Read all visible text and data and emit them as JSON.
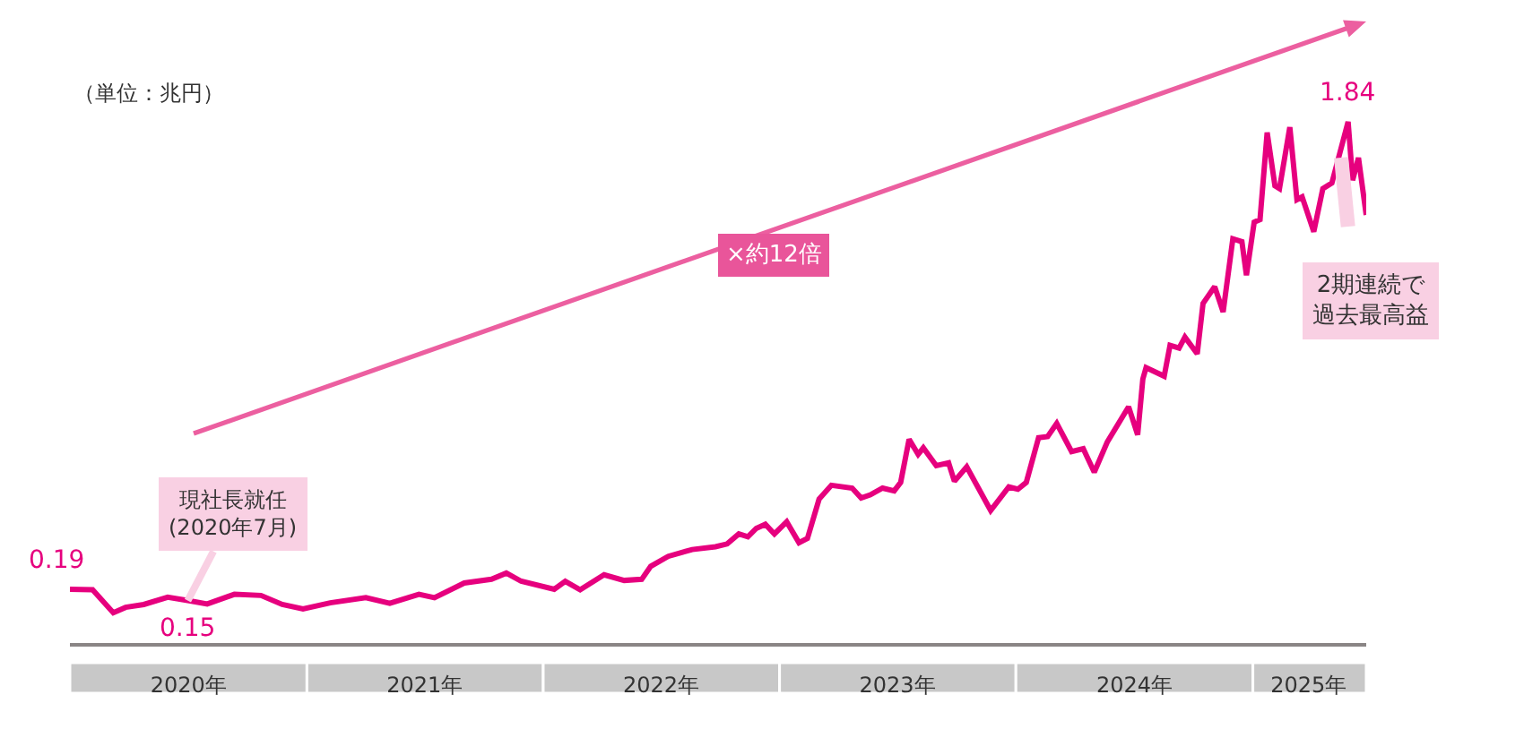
{
  "chart_data": {
    "type": "line",
    "ylabel": "（単位：兆円）",
    "tick_labels": "x",
    "marker": "none",
    "line_style": "solid",
    "xlim": [
      "2020-01-01",
      "2025-06-25"
    ],
    "xticks": [
      {
        "value": "2020-07-02",
        "label": "2020年"
      },
      {
        "value": "2021-07-02",
        "label": "2021年"
      },
      {
        "value": "2022-07-02",
        "label": "2022年"
      },
      {
        "value": "2023-07-02",
        "label": "2023年"
      },
      {
        "value": "2024-07-02",
        "label": "2024年"
      },
      {
        "value": "2025-03-28",
        "label": "2025年"
      }
    ],
    "x": [
      "2020-01-01",
      "2020-02-05",
      "2020-03-08",
      "2020-03-27",
      "2020-04-24",
      "2020-05-31",
      "2020-07-01",
      "2020-07-31",
      "2020-09-11",
      "2020-10-22",
      "2020-11-24",
      "2020-12-26",
      "2021-02-06",
      "2021-04-02",
      "2021-05-09",
      "2021-06-23",
      "2021-07-17",
      "2021-09-01",
      "2021-10-13",
      "2021-11-05",
      "2021-11-28",
      "2022-01-18",
      "2022-02-04",
      "2022-02-27",
      "2022-04-05",
      "2022-05-06",
      "2022-06-02",
      "2022-06-16",
      "2022-07-13",
      "2022-08-19",
      "2022-09-24",
      "2022-10-12",
      "2022-10-30",
      "2022-11-13",
      "2022-11-26",
      "2022-12-10",
      "2022-12-24",
      "2023-01-12",
      "2023-01-31",
      "2023-02-13",
      "2023-03-03",
      "2023-03-22",
      "2023-04-23",
      "2023-05-07",
      "2023-05-21",
      "2023-06-09",
      "2023-06-27",
      "2023-07-07",
      "2023-07-20",
      "2023-08-03",
      "2023-08-11",
      "2023-08-31",
      "2023-09-19",
      "2023-09-28",
      "2023-10-17",
      "2023-11-23",
      "2023-12-21",
      "2024-01-04",
      "2024-01-17",
      "2024-02-05",
      "2024-02-19",
      "2024-03-04",
      "2024-03-27",
      "2024-04-14",
      "2024-05-01",
      "2024-05-21",
      "2024-06-23",
      "2024-07-07",
      "2024-07-15",
      "2024-07-20",
      "2024-08-17",
      "2024-08-26",
      "2024-09-09",
      "2024-09-18",
      "2024-10-07",
      "2024-10-16",
      "2024-11-03",
      "2024-11-16",
      "2024-12-01",
      "2024-12-15",
      "2024-12-22",
      "2025-01-03",
      "2025-01-12",
      "2025-01-23",
      "2025-02-04",
      "2025-02-11",
      "2025-02-27",
      "2025-03-10",
      "2025-03-18",
      "2025-04-05",
      "2025-04-19",
      "2025-05-03",
      "2025-05-28",
      "2025-06-04",
      "2025-06-13",
      "2025-06-25"
    ],
    "series": [
      {
        "color": "#e6007e",
        "values": [
          0.19,
          0.188,
          0.107,
          0.126,
          0.136,
          0.162,
          0.15,
          0.138,
          0.172,
          0.168,
          0.136,
          0.12,
          0.142,
          0.16,
          0.14,
          0.172,
          0.16,
          0.212,
          0.225,
          0.247,
          0.218,
          0.19,
          0.218,
          0.188,
          0.241,
          0.221,
          0.225,
          0.271,
          0.306,
          0.33,
          0.34,
          0.35,
          0.385,
          0.375,
          0.405,
          0.419,
          0.385,
          0.428,
          0.354,
          0.369,
          0.508,
          0.557,
          0.547,
          0.512,
          0.523,
          0.547,
          0.537,
          0.567,
          0.719,
          0.666,
          0.689,
          0.626,
          0.636,
          0.571,
          0.622,
          0.468,
          0.551,
          0.543,
          0.567,
          0.725,
          0.729,
          0.775,
          0.676,
          0.686,
          0.603,
          0.709,
          0.834,
          0.735,
          0.932,
          0.972,
          0.942,
          1.051,
          1.041,
          1.08,
          1.021,
          1.199,
          1.258,
          1.169,
          1.427,
          1.417,
          1.298,
          1.486,
          1.495,
          1.802,
          1.614,
          1.604,
          1.821,
          1.565,
          1.575,
          1.452,
          1.604,
          1.624,
          1.84,
          1.634,
          1.713,
          1.511
        ],
        "value_labels": [
          "0.19",
          null,
          null,
          null,
          null,
          null,
          "0.15",
          null,
          null,
          null,
          null,
          null,
          null,
          null,
          null,
          null,
          null,
          null,
          null,
          null,
          null,
          null,
          null,
          null,
          null,
          null,
          null,
          null,
          null,
          null,
          null,
          null,
          null,
          null,
          null,
          null,
          null,
          null,
          null,
          null,
          null,
          null,
          null,
          null,
          null,
          null,
          null,
          null,
          null,
          null,
          null,
          null,
          null,
          null,
          null,
          null,
          null,
          null,
          null,
          null,
          null,
          null,
          null,
          null,
          null,
          null,
          null,
          null,
          null,
          null,
          null,
          null,
          null,
          null,
          null,
          null,
          null,
          null,
          null,
          null,
          null,
          null,
          null,
          null,
          null,
          null,
          null,
          null,
          null,
          null,
          null,
          null,
          "1.84",
          null,
          null,
          null
        ]
      }
    ],
    "annotations": [
      {
        "text": "現社長就任\n(2020年7月)",
        "x": "2020-07-01",
        "y": 0.15
      },
      "×約12倍",
      "2期連続で過去最高益"
    ]
  }
}
